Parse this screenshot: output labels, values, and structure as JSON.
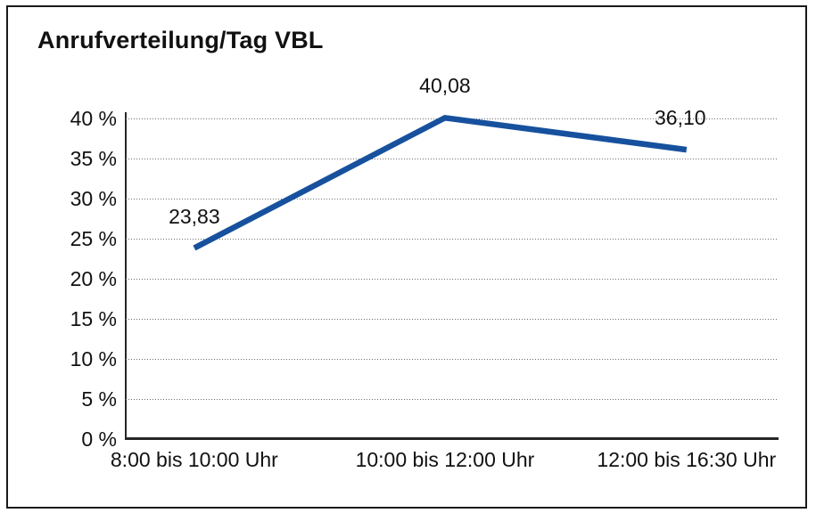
{
  "chart_data": {
    "type": "line",
    "title": "Anrufverteilung/Tag VBL",
    "categories": [
      "8:00 bis 10:00 Uhr",
      "10:00 bis 12:00 Uhr",
      "12:00 bis 16:30 Uhr"
    ],
    "values": [
      23.83,
      40.08,
      36.1
    ],
    "data_labels": [
      "23,83",
      "40,08",
      "36,10"
    ],
    "xlabel": "",
    "ylabel": "",
    "ylim": [
      0,
      40
    ],
    "ytick_step": 5,
    "ytick_labels": [
      "0 %",
      "5 %",
      "10 %",
      "15 %",
      "20 %",
      "25 %",
      "30 %",
      "35 %",
      "40 %"
    ],
    "grid": "horizontal-dotted",
    "legend": "none",
    "line_color": "#17519E",
    "axis_color": "#262626",
    "grid_color": "#6f6f6f"
  }
}
